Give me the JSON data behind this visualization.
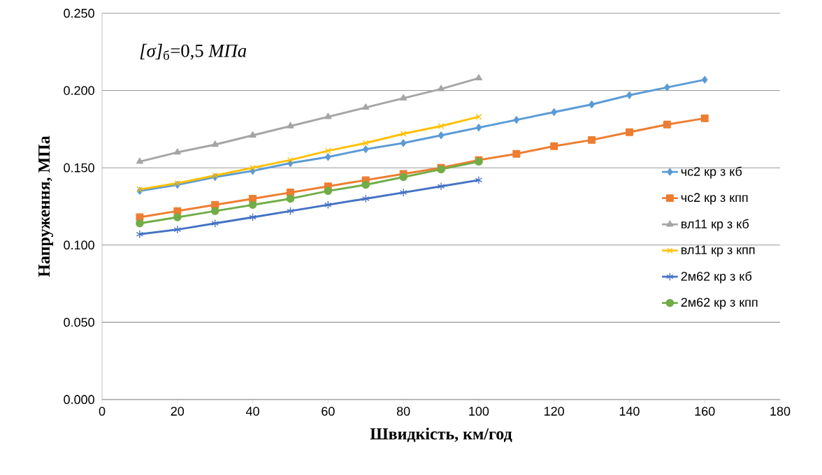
{
  "chart_data": {
    "type": "line",
    "xlabel": "Швидкість, км/год",
    "ylabel": "Напруження, МПа",
    "annotations": [
      "*[σ]*$_{б}$=0,5 *МПа*"
    ],
    "xlim": [
      0,
      180
    ],
    "xticks": [
      0,
      20,
      40,
      60,
      80,
      100,
      120,
      140,
      160,
      180
    ],
    "ylim": [
      0,
      0.25
    ],
    "yticks": [
      {
        "value": 0,
        "label": "0.000"
      },
      {
        "value": 0.05,
        "label": "0.050"
      },
      {
        "value": 0.1,
        "label": "0.100"
      },
      {
        "value": 0.15,
        "label": "0.150"
      },
      {
        "value": 0.2,
        "label": "0.200"
      },
      {
        "value": 0.25,
        "label": "0.250"
      }
    ],
    "grid": "y",
    "legend": "right",
    "series": [
      {
        "name": "чс2 кр з кб",
        "color": "#5b9bd5",
        "marker": "diamond",
        "x": [
          10,
          20,
          30,
          40,
          50,
          60,
          70,
          80,
          90,
          100,
          110,
          120,
          130,
          140,
          150,
          160
        ],
        "values": [
          0.135,
          0.139,
          0.144,
          0.148,
          0.153,
          0.157,
          0.162,
          0.166,
          0.171,
          0.176,
          0.181,
          0.186,
          0.191,
          0.197,
          0.202,
          0.207
        ]
      },
      {
        "name": "чс2 кр з кпп",
        "color": "#ed7d31",
        "marker": "square",
        "x": [
          10,
          20,
          30,
          40,
          50,
          60,
          70,
          80,
          90,
          100,
          110,
          120,
          130,
          140,
          150,
          160
        ],
        "values": [
          0.118,
          0.122,
          0.126,
          0.13,
          0.134,
          0.138,
          0.142,
          0.146,
          0.15,
          0.155,
          0.159,
          0.164,
          0.168,
          0.173,
          0.178,
          0.182
        ]
      },
      {
        "name": "вл11 кр з кб",
        "color": "#a5a5a5",
        "marker": "triangle",
        "x": [
          10,
          20,
          30,
          40,
          50,
          60,
          70,
          80,
          90,
          100
        ],
        "values": [
          0.154,
          0.16,
          0.165,
          0.171,
          0.177,
          0.183,
          0.189,
          0.195,
          0.201,
          0.208
        ]
      },
      {
        "name": "вл11 кр з кпп",
        "color": "#ffc000",
        "marker": "cross",
        "x": [
          10,
          20,
          30,
          40,
          50,
          60,
          70,
          80,
          90,
          100
        ],
        "values": [
          0.136,
          0.14,
          0.145,
          0.15,
          0.155,
          0.161,
          0.166,
          0.172,
          0.177,
          0.183
        ]
      },
      {
        "name": "2м62 кр з кб",
        "color": "#4472c4",
        "marker": "cross",
        "x": [
          10,
          20,
          30,
          40,
          50,
          60,
          70,
          80,
          90,
          100
        ],
        "values": [
          0.107,
          0.11,
          0.114,
          0.118,
          0.122,
          0.126,
          0.13,
          0.134,
          0.138,
          0.142
        ]
      },
      {
        "name": "2м62 кр з кпп",
        "color": "#70ad47",
        "marker": "circle",
        "x": [
          10,
          20,
          30,
          40,
          50,
          60,
          70,
          80,
          90,
          100
        ],
        "values": [
          0.114,
          0.118,
          0.122,
          0.126,
          0.13,
          0.135,
          0.139,
          0.144,
          0.149,
          0.154
        ]
      }
    ]
  }
}
